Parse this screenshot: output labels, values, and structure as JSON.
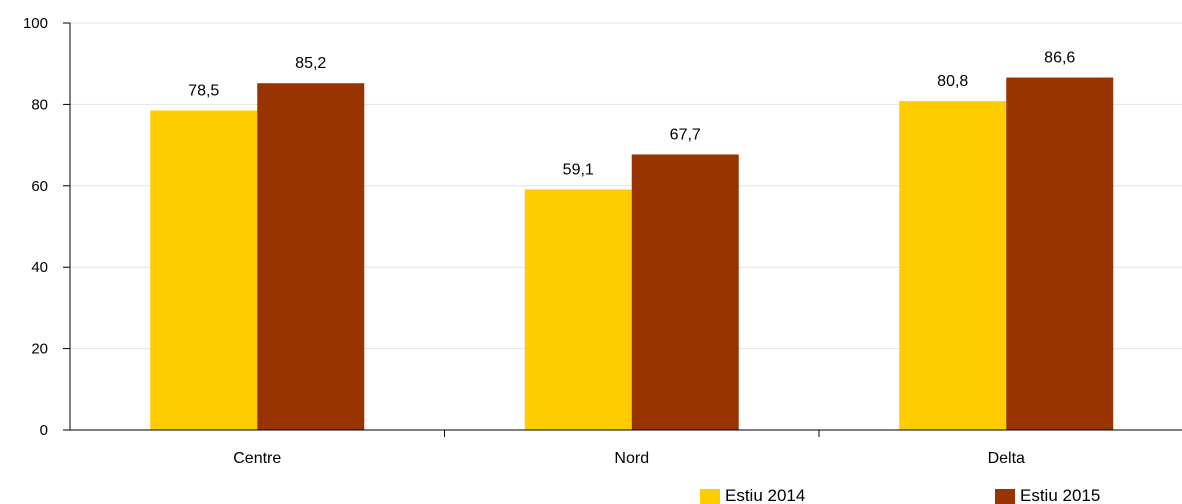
{
  "chart_data": {
    "type": "bar",
    "categories": [
      "Centre",
      "Nord",
      "Delta"
    ],
    "series": [
      {
        "name": "Estiu 2014",
        "values": [
          78.5,
          59.1,
          80.8
        ],
        "labels": [
          "78,5",
          "59,1",
          "80,8"
        ],
        "color": "#FFCC00"
      },
      {
        "name": "Estiu 2015",
        "values": [
          85.2,
          67.7,
          86.6
        ],
        "labels": [
          "85,2",
          "67,7",
          "86,6"
        ],
        "color": "#993300"
      }
    ],
    "ylim": [
      0,
      100
    ],
    "yticks": [
      0,
      20,
      40,
      60,
      80,
      100
    ],
    "grid": true,
    "legend_position": "bottom-right",
    "title": "",
    "xlabel": "",
    "ylabel": ""
  }
}
